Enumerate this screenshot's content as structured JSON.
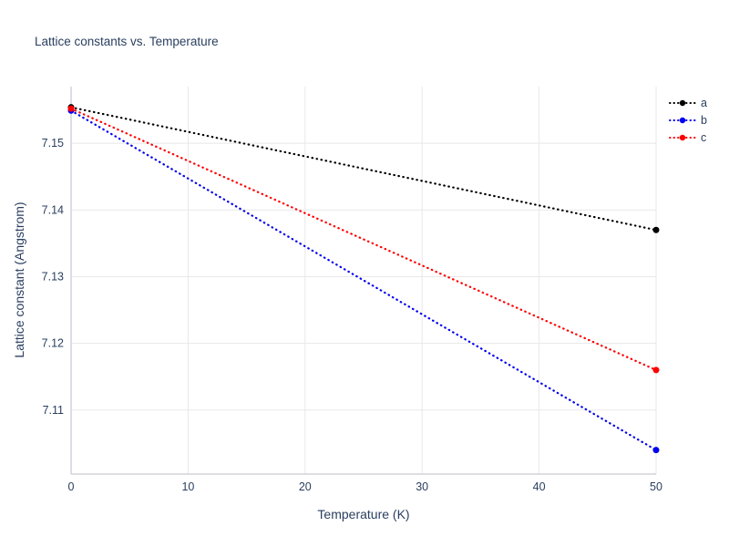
{
  "chart_data": {
    "type": "line",
    "title": "Lattice constants vs. Temperature",
    "xlabel": "Temperature (K)",
    "ylabel": "Lattice constant (Angstrom)",
    "xlim": [
      0,
      50
    ],
    "ylim": [
      7.1004,
      7.1585
    ],
    "xticks": [
      0,
      10,
      20,
      30,
      40,
      50
    ],
    "yticks": [
      7.11,
      7.12,
      7.13,
      7.14,
      7.15
    ],
    "grid": true,
    "line_style": "dotted",
    "legend_position": "outside-top-right",
    "colors": {
      "grid": "#e8e8e8",
      "axis": "#d0d4da",
      "text": "#2a3f5f",
      "background": "#ffffff"
    },
    "series": [
      {
        "name": "a",
        "color": "#000000",
        "x": [
          0,
          50
        ],
        "y": [
          7.1554,
          7.137
        ]
      },
      {
        "name": "b",
        "color": "#0000ee",
        "x": [
          0,
          50
        ],
        "y": [
          7.1549,
          7.104
        ]
      },
      {
        "name": "c",
        "color": "#ff0000",
        "x": [
          0,
          50
        ],
        "y": [
          7.1552,
          7.116
        ]
      }
    ]
  }
}
